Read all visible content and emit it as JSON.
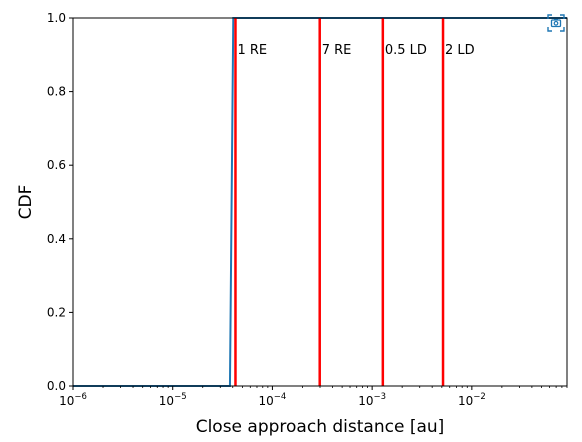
{
  "chart_data": {
    "type": "line",
    "xscale": "log",
    "xlim": [
      1e-06,
      0.09
    ],
    "ylim": [
      0,
      1.0
    ],
    "xlabel": "Close approach distance [au]",
    "ylabel": "CDF",
    "x_ticks": [
      {
        "base": "10",
        "exp": "−6",
        "value": 1e-06
      },
      {
        "base": "10",
        "exp": "−5",
        "value": 1e-05
      },
      {
        "base": "10",
        "exp": "−4",
        "value": 0.0001
      },
      {
        "base": "10",
        "exp": "−3",
        "value": 0.001
      },
      {
        "base": "10",
        "exp": "−2",
        "value": 0.01
      }
    ],
    "y_ticks": [
      "0.0",
      "0.2",
      "0.4",
      "0.6",
      "0.8",
      "1.0"
    ],
    "y_tick_values": [
      0,
      0.2,
      0.4,
      0.6,
      0.8,
      1.0
    ],
    "series": [
      {
        "color": "#1f77b4",
        "x": [
          1e-06,
          3.75e-05,
          4.05e-05,
          0.09
        ],
        "y": [
          0,
          0,
          1,
          1
        ]
      }
    ],
    "reference_lines": [
      {
        "label": "1 RE",
        "x": 4.26e-05,
        "color": "#ff0000"
      },
      {
        "label": "7 RE",
        "x": 0.000298,
        "color": "#ff0000"
      },
      {
        "label": "0.5 LD",
        "x": 0.00128,
        "color": "#ff0000"
      },
      {
        "label": "2 LD",
        "x": 0.00514,
        "color": "#ff0000"
      }
    ],
    "grid": false
  },
  "toolbar": {
    "icon": "camera-icon",
    "color": "#1f77b4"
  }
}
